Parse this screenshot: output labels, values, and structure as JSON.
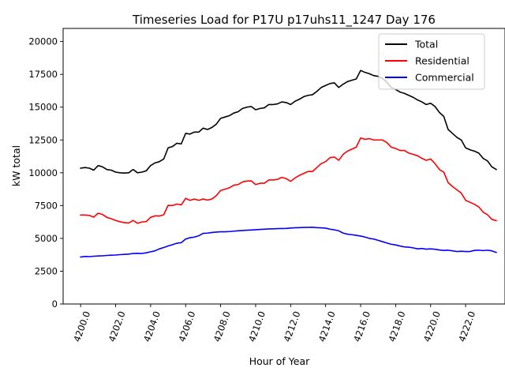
{
  "chart_data": {
    "type": "line",
    "title": "Timeseries Load for P17U p17uhs11_1247  Day 176",
    "xlabel": "Hour of Year",
    "ylabel": "kW total",
    "xlim": [
      4199.0,
      4224.25
    ],
    "ylim": [
      0,
      21000
    ],
    "xticks": [
      4200,
      4202,
      4204,
      4206,
      4208,
      4210,
      4212,
      4214,
      4216,
      4218,
      4220,
      4222
    ],
    "xtick_labels": [
      "4200.0",
      "4202.0",
      "4204.0",
      "4206.0",
      "4208.0",
      "4210.0",
      "4212.0",
      "4214.0",
      "4216.0",
      "4218.0",
      "4220.0",
      "4222.0"
    ],
    "yticks": [
      0,
      2500,
      5000,
      7500,
      10000,
      12500,
      15000,
      17500,
      20000
    ],
    "ytick_labels": [
      "0",
      "2500",
      "5000",
      "7500",
      "10000",
      "12500",
      "15000",
      "17500",
      "20000"
    ],
    "legend_position": "top-right",
    "x": [
      4200.0,
      4200.25,
      4200.5,
      4200.75,
      4201.0,
      4201.25,
      4201.5,
      4201.75,
      4202.0,
      4202.25,
      4202.5,
      4202.75,
      4203.0,
      4203.25,
      4203.5,
      4203.75,
      4204.0,
      4204.25,
      4204.5,
      4204.75,
      4205.0,
      4205.25,
      4205.5,
      4205.75,
      4206.0,
      4206.25,
      4206.5,
      4206.75,
      4207.0,
      4207.25,
      4207.5,
      4207.75,
      4208.0,
      4208.25,
      4208.5,
      4208.75,
      4209.0,
      4209.25,
      4209.5,
      4209.75,
      4210.0,
      4210.25,
      4210.5,
      4210.75,
      4211.0,
      4211.25,
      4211.5,
      4211.75,
      4212.0,
      4212.25,
      4212.5,
      4212.75,
      4213.0,
      4213.25,
      4213.5,
      4213.75,
      4214.0,
      4214.25,
      4214.5,
      4214.75,
      4215.0,
      4215.25,
      4215.5,
      4215.75,
      4216.0,
      4216.25,
      4216.5,
      4216.75,
      4217.0,
      4217.25,
      4217.5,
      4217.75,
      4218.0,
      4218.25,
      4218.5,
      4218.75,
      4219.0,
      4219.25,
      4219.5,
      4219.75,
      4220.0,
      4220.25,
      4220.5,
      4220.75,
      4221.0,
      4221.25,
      4221.5,
      4221.75,
      4222.0,
      4222.25,
      4222.5,
      4222.75,
      4223.0,
      4223.25,
      4223.5,
      4223.75
    ],
    "series": [
      {
        "name": "Total",
        "color": "#000000",
        "values": [
          10350,
          10400,
          10350,
          10200,
          10550,
          10450,
          10250,
          10200,
          10050,
          10000,
          9980,
          10000,
          10250,
          10000,
          10050,
          10150,
          10550,
          10750,
          10850,
          11050,
          11900,
          12000,
          12250,
          12200,
          13000,
          12950,
          13100,
          13100,
          13400,
          13300,
          13450,
          13700,
          14150,
          14250,
          14350,
          14550,
          14650,
          14900,
          15000,
          15050,
          14800,
          14900,
          14950,
          15200,
          15200,
          15250,
          15400,
          15350,
          15200,
          15450,
          15600,
          15800,
          15900,
          15950,
          16200,
          16500,
          16650,
          16800,
          16850,
          16500,
          16750,
          16950,
          17050,
          17150,
          17800,
          17650,
          17550,
          17400,
          17350,
          17200,
          16900,
          16500,
          16350,
          16150,
          16050,
          15900,
          15750,
          15550,
          15400,
          15200,
          15300,
          15050,
          14600,
          14300,
          13300,
          13000,
          12700,
          12500,
          11900,
          11750,
          11650,
          11500,
          11100,
          10900,
          10450,
          10250
        ]
      },
      {
        "name": "Residential",
        "color": "#ff0000",
        "values": [
          6780,
          6780,
          6750,
          6620,
          6920,
          6820,
          6600,
          6500,
          6370,
          6270,
          6200,
          6170,
          6370,
          6150,
          6250,
          6280,
          6600,
          6720,
          6700,
          6800,
          7520,
          7500,
          7620,
          7550,
          8050,
          7900,
          8000,
          7900,
          8000,
          7920,
          8000,
          8250,
          8650,
          8750,
          8850,
          9050,
          9100,
          9300,
          9370,
          9380,
          9100,
          9200,
          9200,
          9450,
          9450,
          9500,
          9650,
          9550,
          9350,
          9600,
          9800,
          9950,
          10100,
          10100,
          10400,
          10700,
          10850,
          11150,
          11200,
          10950,
          11400,
          11650,
          11800,
          11950,
          12650,
          12550,
          12600,
          12500,
          12500,
          12500,
          12300,
          11950,
          11850,
          11700,
          11700,
          11500,
          11400,
          11300,
          11100,
          10950,
          11050,
          10700,
          10250,
          10050,
          9250,
          8950,
          8700,
          8450,
          7900,
          7750,
          7600,
          7400,
          7000,
          6800,
          6450,
          6350
        ]
      },
      {
        "name": "Commercial",
        "color": "#0000ff",
        "values": [
          3580,
          3620,
          3610,
          3640,
          3660,
          3670,
          3700,
          3720,
          3730,
          3760,
          3780,
          3800,
          3850,
          3860,
          3850,
          3900,
          3980,
          4050,
          4200,
          4300,
          4420,
          4520,
          4630,
          4670,
          4950,
          5050,
          5100,
          5200,
          5380,
          5400,
          5450,
          5480,
          5500,
          5500,
          5520,
          5550,
          5580,
          5600,
          5620,
          5640,
          5660,
          5680,
          5700,
          5720,
          5730,
          5740,
          5750,
          5760,
          5790,
          5810,
          5820,
          5830,
          5840,
          5850,
          5820,
          5800,
          5780,
          5700,
          5650,
          5580,
          5400,
          5320,
          5280,
          5230,
          5180,
          5100,
          5000,
          4950,
          4850,
          4750,
          4650,
          4550,
          4500,
          4420,
          4350,
          4330,
          4280,
          4200,
          4230,
          4180,
          4200,
          4170,
          4120,
          4080,
          4100,
          4050,
          4000,
          4020,
          4000,
          4000,
          4080,
          4100,
          4070,
          4100,
          4050,
          3930
        ]
      }
    ]
  }
}
